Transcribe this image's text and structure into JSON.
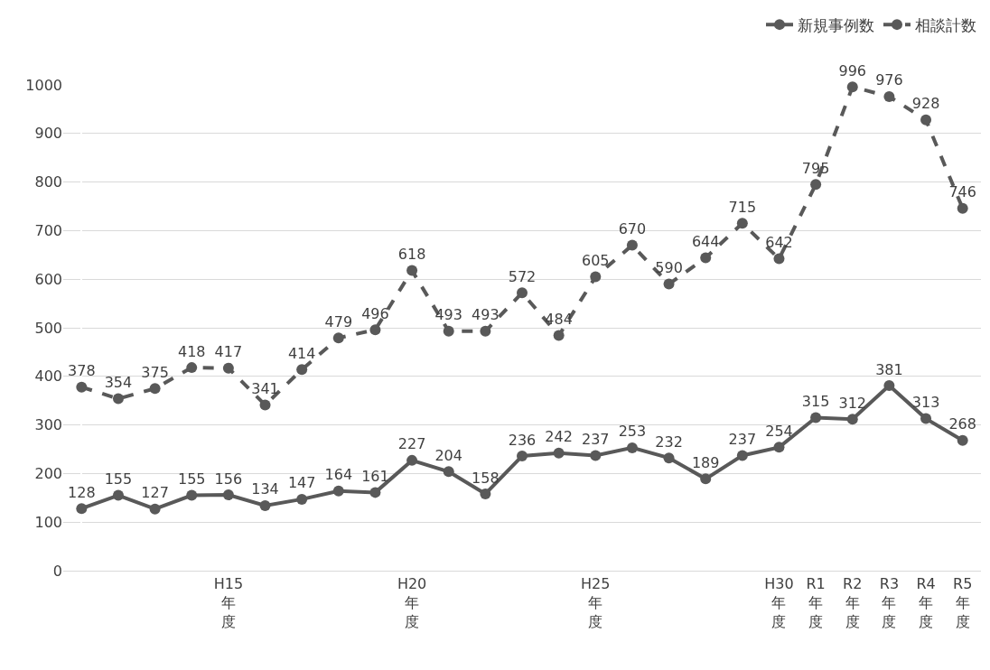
{
  "chart_data": {
    "type": "line",
    "categories": [
      null,
      null,
      null,
      null,
      "H15年度",
      null,
      null,
      null,
      null,
      "H20年度",
      null,
      null,
      null,
      null,
      "H25年度",
      null,
      null,
      null,
      null,
      "H30年度",
      "R1年度",
      "R2年度",
      "R3年度",
      "R4年度",
      "R5年度"
    ],
    "series": [
      {
        "name": "新規事例数",
        "color": "#595959",
        "line_style": "solid",
        "values": [
          128,
          155,
          127,
          155,
          156,
          134,
          147,
          164,
          161,
          227,
          204,
          158,
          236,
          242,
          237,
          253,
          232,
          189,
          237,
          254,
          315,
          312,
          381,
          313,
          268
        ]
      },
      {
        "name": "相談計数",
        "color": "#595959",
        "line_style": "dashed",
        "values": [
          378,
          354,
          375,
          418,
          417,
          341,
          414,
          479,
          496,
          618,
          493,
          493,
          572,
          484,
          605,
          670,
          590,
          644,
          715,
          642,
          795,
          996,
          976,
          928,
          746
        ]
      }
    ],
    "ylim": [
      0,
      1000
    ],
    "yticks": [
      0,
      100,
      200,
      300,
      400,
      500,
      600,
      700,
      800,
      900,
      1000
    ],
    "grid": "y",
    "legend": "top right",
    "marker": "circle",
    "data_labels": true
  }
}
